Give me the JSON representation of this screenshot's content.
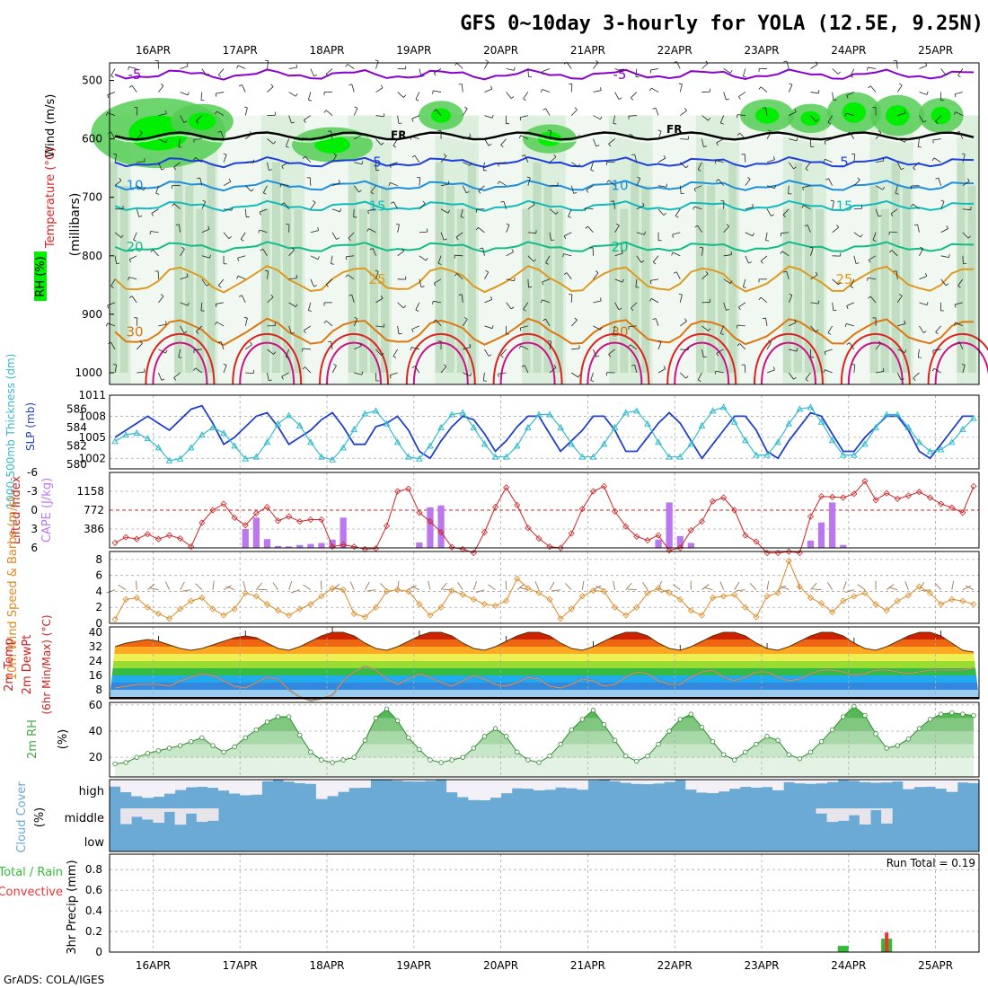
{
  "page": {
    "title": "GFS 0~10day 3-hourly for YOLA (12.5E, 9.25N)",
    "footer": "GrADS: COLA/IGES",
    "run_total_label": "Run Total = 0.19"
  },
  "colors": {
    "rh_light": "#dcefdc",
    "rh_mid": "#bcd9bc",
    "rh_dark": "#9dc09d",
    "rh_green": "#55cc55",
    "rh_bright": "#00ee00",
    "temp_cold": "#8800cc",
    "temp_blue": "#1f3fdd",
    "temp_lightblue": "#1f8fdd",
    "temp_cyan": "#11bbbb",
    "temp_green": "#11bb88",
    "temp_orange": "#dd9922",
    "temp_darkorange": "#dd7711",
    "temp_red": "#dd2222",
    "temp_magenta": "#cc1188",
    "slp": "#1f3fcc",
    "thickness": "#33bbcc",
    "cape": "#bb77ee",
    "lifted": "#cc2222",
    "wind_speed": "#dd8822",
    "wind_barb": "#997755",
    "rh2m": "#44aa44",
    "cloud": "#6aaad4",
    "precip_total": "#33bb33",
    "precip_conv": "#ee3333"
  },
  "chart_data": [
    {
      "panel": "upper_air",
      "type": "heatmap",
      "x": [
        "16APR",
        "17APR",
        "18APR",
        "19APR",
        "20APR",
        "21APR",
        "22APR",
        "23APR",
        "24APR",
        "25APR"
      ],
      "ylabel": "(millibars)",
      "y_ticks": [
        "500",
        "600",
        "700",
        "800",
        "900",
        "1000"
      ],
      "legend_left": [
        "Wind (m/s)",
        "Temperature (°C)",
        "RH (%)"
      ],
      "freezing_label": "FR",
      "isotherms": [
        {
          "label": "-5",
          "level_mb": 490
        },
        {
          "label": "5",
          "level_mb": 640
        },
        {
          "label": "10",
          "level_mb": 680
        },
        {
          "label": "15",
          "level_mb": 715
        },
        {
          "label": "20",
          "level_mb": 785
        },
        {
          "label": "25",
          "level_mb": 840
        },
        {
          "label": "30",
          "level_mb": 930
        }
      ]
    },
    {
      "panel": "slp_thickness",
      "type": "line",
      "ylabel_left": "1000-500mb Thickness (dm)",
      "ylabel_right": "SLP (mb)",
      "y_ticks_left": [
        "586",
        "584",
        "582",
        "580"
      ],
      "y_ticks_right": [
        "1011",
        "1008",
        "1005",
        "1002"
      ],
      "series": [
        {
          "name": "SLP (mb)",
          "values": [
            1005,
            1006,
            1007,
            1008,
            1007,
            1006,
            1007.5,
            1009,
            1009.5,
            1007,
            1004,
            1005,
            1006.5,
            1008,
            1008.5,
            1006.5,
            1004,
            1005,
            1006,
            1007.5,
            1008.5,
            1006.5,
            1004,
            1004,
            1006.5,
            1007,
            1008,
            1006,
            1003,
            1002,
            1004.5,
            1006.5,
            1008,
            1007.5,
            1005.5,
            1003,
            1004.5,
            1006.5,
            1008,
            1008,
            1005.5,
            1003,
            1004.5,
            1006,
            1008,
            1008,
            1006,
            1003,
            1003,
            1005,
            1007,
            1008.5,
            1007,
            1004.5,
            1002,
            1004,
            1006,
            1008,
            1008,
            1006,
            1003,
            1002,
            1004.5,
            1006.5,
            1008.5,
            1008,
            1005.5,
            1003,
            1003,
            1005,
            1006.5,
            1008,
            1008,
            1006,
            1003,
            1002,
            1004,
            1006,
            1008,
            1008
          ]
        },
        {
          "name": "Thickness (dm)",
          "values": [
            582.5,
            583.2,
            583.4,
            582.8,
            581.8,
            580.4,
            580.6,
            581.8,
            583.2,
            584.0,
            583.4,
            582.0,
            580.6,
            580.8,
            582.4,
            584.4,
            585.3,
            584.2,
            582.4,
            580.8,
            580.5,
            581.8,
            583.8,
            585.5,
            585.8,
            584.4,
            582.4,
            580.8,
            580.6,
            582.0,
            584.0,
            585.4,
            585.6,
            584.0,
            582.2,
            580.8,
            580.8,
            582.0,
            584.0,
            585.4,
            585.4,
            584.0,
            582.2,
            580.8,
            580.8,
            582.2,
            584.0,
            585.6,
            585.8,
            584.4,
            582.4,
            580.8,
            580.8,
            582.2,
            584.2,
            585.8,
            586.2,
            584.6,
            582.6,
            581.0,
            581.0,
            582.4,
            584.4,
            586.0,
            586.2,
            584.6,
            582.6,
            581.0,
            581.0,
            582.2,
            584.0,
            585.4,
            585.4,
            584.0,
            582.4,
            581.4,
            581.6,
            582.4,
            583.8,
            585.0
          ]
        }
      ]
    },
    {
      "panel": "cape_li",
      "type": "bar",
      "ylabel_left": "Lifted Index",
      "ylabel_right": "CAPE (J/kg)",
      "y_ticks_left": [
        "-6",
        "-3",
        "0",
        "3",
        "6"
      ],
      "y_ticks_right": [
        "1158",
        "772",
        "386"
      ],
      "series": [
        {
          "name": "CAPE (J/kg)",
          "values": [
            0,
            0,
            0,
            0,
            0,
            0,
            0,
            0,
            0,
            0,
            0,
            0,
            386,
            620,
            180,
            40,
            30,
            60,
            80,
            100,
            170,
            620,
            0,
            0,
            0,
            0,
            0,
            0,
            110,
            830,
            870,
            0,
            0,
            0,
            0,
            0,
            0,
            0,
            0,
            0,
            0,
            0,
            0,
            0,
            0,
            0,
            0,
            0,
            0,
            0,
            170,
            930,
            240,
            100,
            0,
            0,
            0,
            0,
            0,
            0,
            0,
            0,
            0,
            0,
            150,
            520,
            930,
            60,
            0,
            0,
            0,
            0,
            0,
            0,
            0,
            0,
            0,
            0,
            0,
            0
          ]
        },
        {
          "name": "Lifted Index",
          "values": [
            5.2,
            4.3,
            4.6,
            3.8,
            4.6,
            4.0,
            4.5,
            5.8,
            2.0,
            0.0,
            -1.0,
            1.2,
            2.4,
            0.5,
            -0.5,
            1.7,
            1.0,
            1.8,
            1.5,
            1.5,
            5.8,
            5.5,
            5.8,
            6.2,
            6.1,
            2.5,
            -3.0,
            -3.4,
            0.4,
            1.8,
            3.5,
            5.9,
            6.2,
            6.8,
            3.5,
            -0.5,
            -3.6,
            -0.8,
            2.8,
            4.5,
            5.8,
            6.0,
            3.7,
            -0.2,
            -3.0,
            -3.8,
            0.2,
            2.6,
            4.2,
            4.8,
            4.0,
            6.4,
            6.0,
            3.2,
            1.8,
            -1.4,
            -2.0,
            0.0,
            4.0,
            5.0,
            6.8,
            6.8,
            6.6,
            6.8,
            1.0,
            -2.2,
            -2.1,
            -2.0,
            -2.6,
            -4.6,
            -1.6,
            -2.7,
            -1.8,
            -2.3,
            -2.9,
            -2.0,
            -1.0,
            -0.4,
            0.4,
            -3.8
          ]
        }
      ]
    },
    {
      "panel": "wind10m",
      "type": "line",
      "ylabel": "10m Wind Speed & Barbs (m/s)",
      "y_ticks": [
        "8",
        "6",
        "4",
        "2",
        "0"
      ],
      "series": [
        {
          "name": "10m Wind Speed",
          "values": [
            0.5,
            3.0,
            3.2,
            2.0,
            1.2,
            0.6,
            1.8,
            2.8,
            3.2,
            1.8,
            1.0,
            1.8,
            3.8,
            3.4,
            2.4,
            1.6,
            1.0,
            1.8,
            2.4,
            3.4,
            4.4,
            4.2,
            1.2,
            0.8,
            2.0,
            4.0,
            4.2,
            4.0,
            2.4,
            1.0,
            2.0,
            4.1,
            3.6,
            3.0,
            2.4,
            2.2,
            2.8,
            5.6,
            4.4,
            3.8,
            3.0,
            0.6,
            1.8,
            3.4,
            4.1,
            4.0,
            2.0,
            1.0,
            2.0,
            3.8,
            4.4,
            3.8,
            3.0,
            1.6,
            1.0,
            3.2,
            3.4,
            3.6,
            2.0,
            0.8,
            3.4,
            3.8,
            7.8,
            4.6,
            3.2,
            2.5,
            1.4,
            2.8,
            3.4,
            3.8,
            2.4,
            1.6,
            2.8,
            3.5,
            4.6,
            3.8,
            2.4,
            3.0,
            2.8,
            2.4
          ]
        }
      ]
    },
    {
      "panel": "temp2m",
      "type": "area",
      "ylabel": "2m Temp 2m DewPt (6hr Min/Max) (°C)",
      "y_ticks": [
        "40",
        "32",
        "24",
        "16",
        "8"
      ],
      "series": [
        {
          "name": "2m Temp",
          "values": [
            32,
            34,
            35,
            36,
            35,
            33,
            31,
            30,
            31,
            33,
            35,
            37,
            38,
            37,
            34,
            31,
            30,
            32,
            35,
            38,
            40,
            40,
            38,
            34,
            31,
            30,
            32,
            35,
            38,
            40,
            40,
            38,
            34,
            31,
            30,
            32,
            35,
            38,
            40,
            40,
            38,
            34,
            31,
            30,
            32,
            35,
            38,
            40,
            40,
            38,
            34,
            31,
            30,
            32,
            35,
            38,
            40,
            40,
            38,
            34,
            31,
            30,
            32,
            35,
            38,
            40,
            40,
            38,
            34,
            31,
            30,
            32,
            35,
            38,
            40,
            40,
            38,
            34,
            30,
            29
          ]
        },
        {
          "name": "2m DewPt",
          "values": [
            9,
            10,
            11,
            11,
            11,
            10,
            13,
            15,
            17,
            16,
            13,
            10,
            9,
            12,
            15,
            14,
            8,
            4,
            2,
            3,
            5,
            13,
            18,
            21,
            19,
            14,
            11,
            14,
            17,
            15,
            12,
            10,
            13,
            16,
            14,
            11,
            10,
            12,
            15,
            14,
            10,
            9,
            11,
            14,
            13,
            10,
            11,
            15,
            18,
            17,
            13,
            11,
            11,
            15,
            18,
            19,
            15,
            13,
            15,
            18,
            18,
            15,
            13,
            14,
            17,
            19,
            19,
            18,
            16,
            17,
            19,
            19,
            18,
            17,
            18,
            19,
            19,
            19,
            19,
            20
          ]
        }
      ]
    },
    {
      "panel": "rh2m",
      "type": "area",
      "ylabel": "2m RH (%)",
      "y_ticks": [
        "60",
        "40",
        "20"
      ],
      "series": [
        {
          "name": "2m RH",
          "values": [
            15,
            16,
            20,
            23,
            25,
            27,
            29,
            32,
            35,
            29,
            24,
            28,
            35,
            41,
            47,
            51,
            51,
            37,
            24,
            18,
            16,
            18,
            20,
            33,
            50,
            57,
            48,
            35,
            26,
            18,
            16,
            18,
            20,
            27,
            36,
            42,
            36,
            24,
            18,
            16,
            21,
            30,
            41,
            49,
            56,
            45,
            33,
            21,
            17,
            21,
            30,
            40,
            49,
            53,
            43,
            32,
            22,
            18,
            24,
            30,
            36,
            33,
            22,
            19,
            24,
            32,
            41,
            51,
            59,
            52,
            38,
            27,
            29,
            34,
            42,
            49,
            53,
            54,
            53,
            52
          ]
        }
      ]
    },
    {
      "panel": "cloud",
      "type": "heatmap",
      "ylabel": "Cloud Cover (%)",
      "y_ticks": [
        "high",
        "middle",
        "low"
      ],
      "layers": [
        "high",
        "middle",
        "low"
      ]
    },
    {
      "panel": "precip",
      "type": "bar",
      "ylabel": "3hr Precip (mm)",
      "legend_left": [
        "Total / Rain",
        "Convective"
      ],
      "y_ticks": [
        "0.8",
        "0.6",
        "0.4",
        "0.2",
        "0"
      ],
      "series": [
        {
          "name": "Total / Rain",
          "values": [
            0,
            0,
            0,
            0,
            0,
            0,
            0,
            0,
            0,
            0,
            0,
            0,
            0,
            0,
            0,
            0,
            0,
            0,
            0,
            0,
            0,
            0,
            0,
            0,
            0,
            0,
            0,
            0,
            0,
            0,
            0,
            0,
            0,
            0,
            0,
            0,
            0,
            0,
            0,
            0,
            0,
            0,
            0,
            0,
            0,
            0,
            0,
            0,
            0,
            0,
            0,
            0,
            0,
            0,
            0,
            0,
            0,
            0,
            0,
            0,
            0,
            0,
            0,
            0,
            0,
            0,
            0,
            0.06,
            0,
            0,
            0,
            0.13,
            0,
            0,
            0,
            0,
            0,
            0,
            0,
            0
          ]
        },
        {
          "name": "Convective",
          "values": [
            0,
            0,
            0,
            0,
            0,
            0,
            0,
            0,
            0,
            0,
            0,
            0,
            0,
            0,
            0,
            0,
            0,
            0,
            0,
            0,
            0,
            0,
            0,
            0,
            0,
            0,
            0,
            0,
            0,
            0,
            0,
            0,
            0,
            0,
            0,
            0,
            0,
            0,
            0,
            0,
            0,
            0,
            0,
            0,
            0,
            0,
            0,
            0,
            0,
            0,
            0,
            0,
            0,
            0,
            0,
            0,
            0,
            0,
            0,
            0,
            0,
            0,
            0,
            0,
            0,
            0,
            0,
            0,
            0,
            0,
            0,
            0.19,
            0,
            0,
            0,
            0,
            0,
            0,
            0,
            0
          ]
        }
      ]
    }
  ]
}
